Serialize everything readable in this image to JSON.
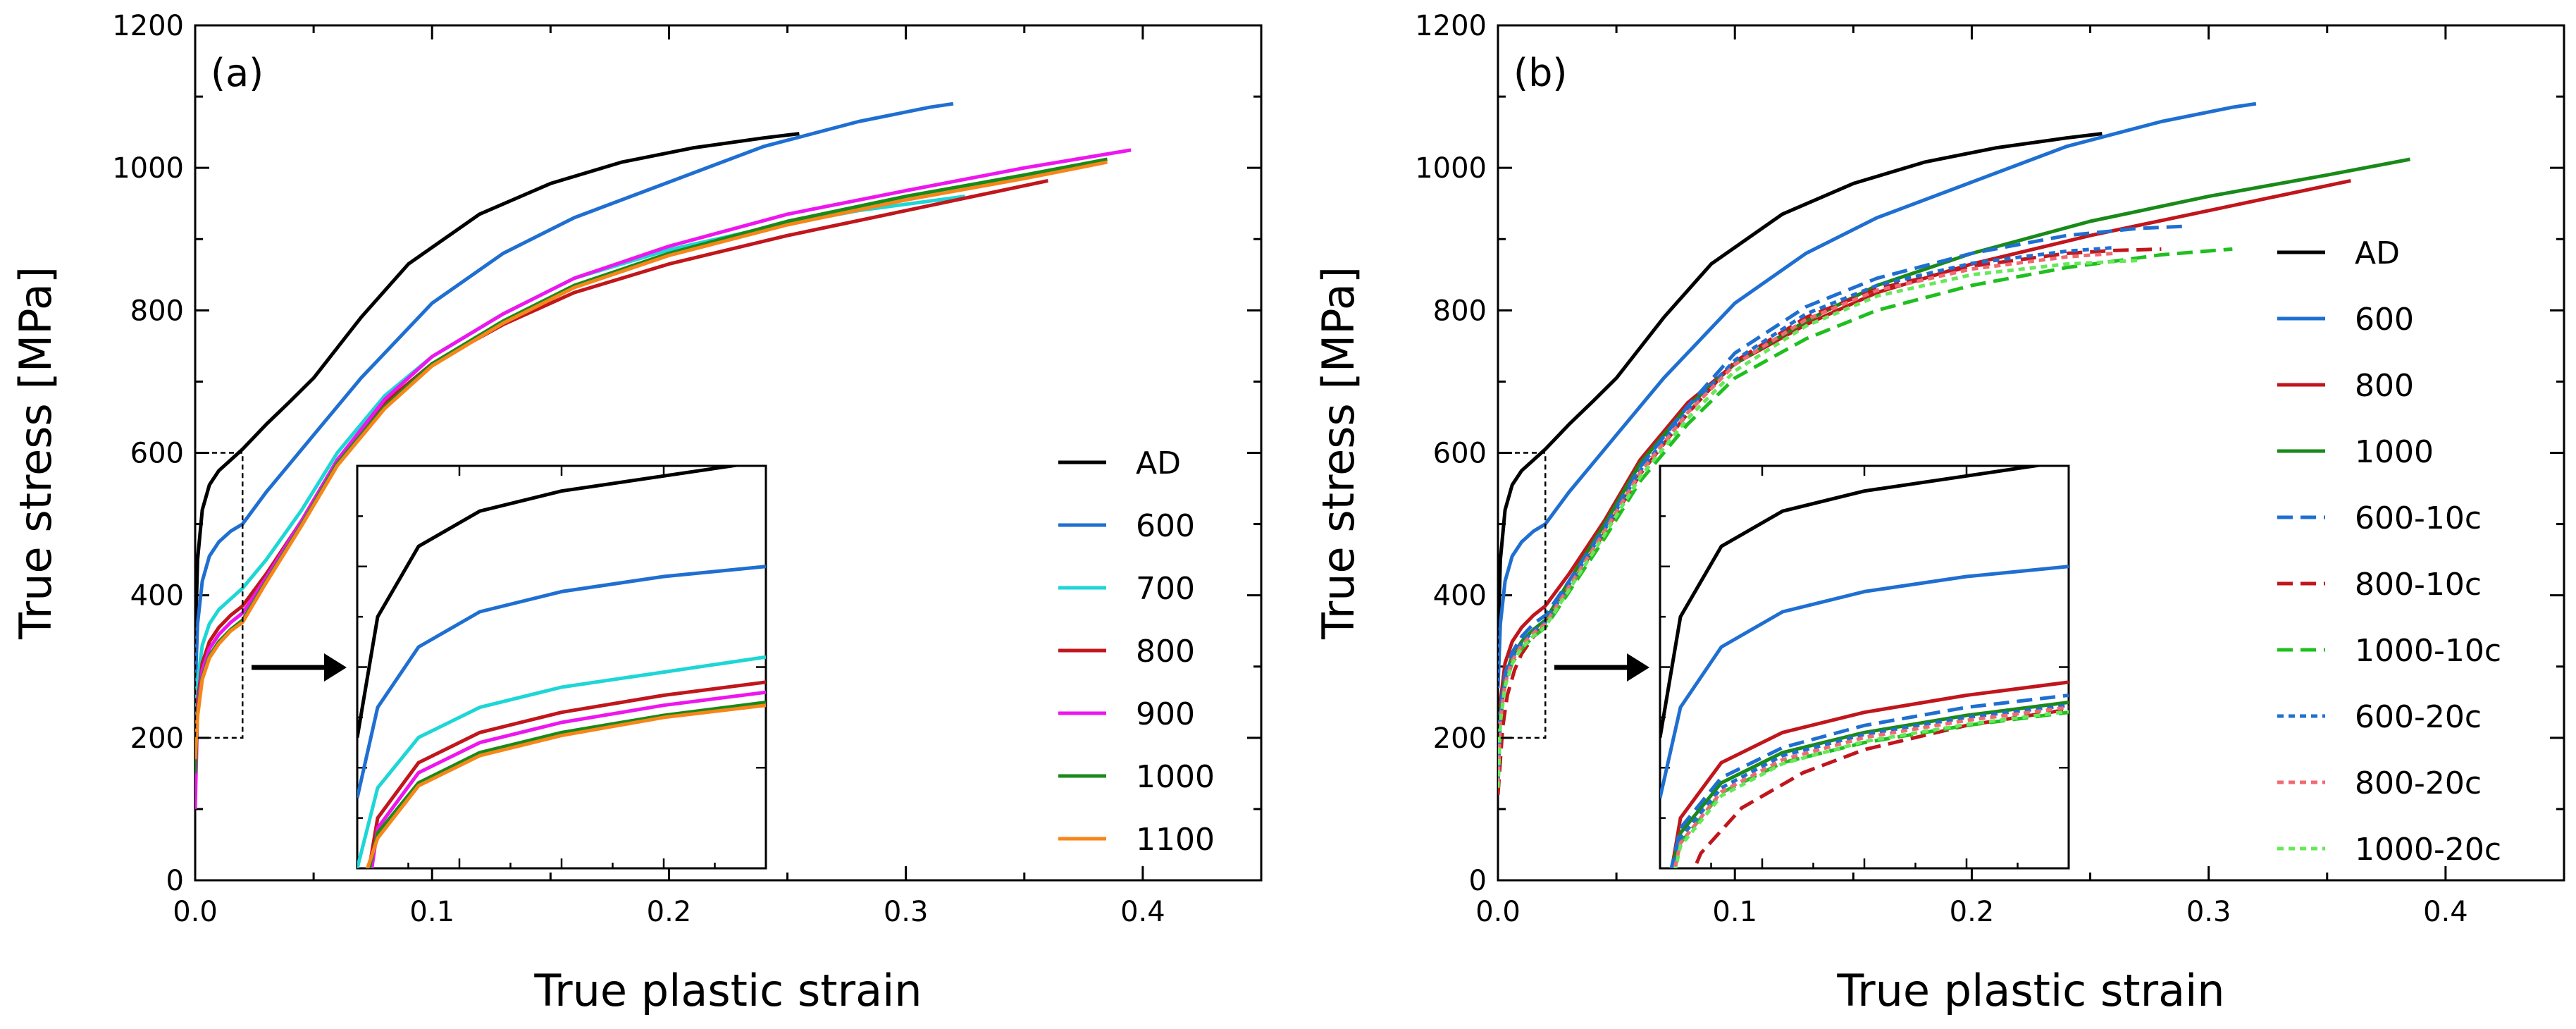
{
  "chart_data": [
    {
      "type": "line",
      "panel_label": "(a)",
      "xlabel": "True plastic strain",
      "ylabel": "True stress [MPa]",
      "xlim": [
        0,
        0.45
      ],
      "ylim": [
        0,
        1200
      ],
      "xticks": [
        "0.0",
        "0.1",
        "0.2",
        "0.3",
        "0.4"
      ],
      "yticks": [
        "0",
        "200",
        "400",
        "600",
        "800",
        "1000",
        "1200"
      ],
      "grid": false,
      "legend_position": "right",
      "inset": {
        "source_box": {
          "x": [
            0,
            0.02
          ],
          "y": [
            200,
            600
          ]
        },
        "xlim": [
          0,
          0.02
        ],
        "ylim": [
          200,
          600
        ],
        "arrow": "right"
      },
      "series": [
        {
          "name": "AD",
          "color": "#000000",
          "dash": "solid",
          "x": [
            0,
            0.001,
            0.003,
            0.006,
            0.01,
            0.015,
            0.02,
            0.03,
            0.04,
            0.05,
            0.07,
            0.09,
            0.12,
            0.15,
            0.18,
            0.21,
            0.24,
            0.255
          ],
          "y": [
            330,
            450,
            520,
            555,
            575,
            590,
            605,
            640,
            672,
            705,
            790,
            865,
            935,
            978,
            1008,
            1028,
            1042,
            1048
          ]
        },
        {
          "name": "600",
          "color": "#1f6fd1",
          "dash": "solid",
          "x": [
            0,
            0.001,
            0.003,
            0.006,
            0.01,
            0.015,
            0.02,
            0.03,
            0.04,
            0.05,
            0.07,
            0.1,
            0.13,
            0.16,
            0.2,
            0.24,
            0.28,
            0.31,
            0.32
          ],
          "y": [
            270,
            360,
            420,
            455,
            475,
            490,
            500,
            545,
            585,
            625,
            705,
            810,
            880,
            930,
            980,
            1030,
            1065,
            1085,
            1090
          ]
        },
        {
          "name": "700",
          "color": "#1ed6d6",
          "dash": "solid",
          "x": [
            0,
            0.001,
            0.003,
            0.006,
            0.01,
            0.015,
            0.02,
            0.03,
            0.045,
            0.06,
            0.08,
            0.1,
            0.13,
            0.16,
            0.2,
            0.24,
            0.28,
            0.325
          ],
          "y": [
            200,
            280,
            330,
            360,
            380,
            395,
            410,
            450,
            520,
            600,
            680,
            735,
            795,
            845,
            885,
            915,
            940,
            960
          ]
        },
        {
          "name": "800",
          "color": "#c0161c",
          "dash": "solid",
          "x": [
            0,
            0.001,
            0.003,
            0.006,
            0.01,
            0.015,
            0.02,
            0.03,
            0.045,
            0.06,
            0.08,
            0.1,
            0.13,
            0.16,
            0.2,
            0.25,
            0.3,
            0.36
          ],
          "y": [
            130,
            250,
            305,
            335,
            355,
            372,
            385,
            430,
            505,
            590,
            670,
            725,
            780,
            825,
            865,
            905,
            940,
            982
          ]
        },
        {
          "name": "900",
          "color": "#ee16ee",
          "dash": "solid",
          "x": [
            0,
            0.001,
            0.003,
            0.006,
            0.01,
            0.015,
            0.02,
            0.03,
            0.045,
            0.06,
            0.08,
            0.1,
            0.13,
            0.16,
            0.2,
            0.25,
            0.3,
            0.35,
            0.395
          ],
          "y": [
            100,
            240,
            295,
            325,
            345,
            362,
            375,
            425,
            505,
            590,
            675,
            735,
            795,
            845,
            890,
            935,
            968,
            1000,
            1025
          ]
        },
        {
          "name": "1000",
          "color": "#198a19",
          "dash": "solid",
          "x": [
            0,
            0.001,
            0.003,
            0.006,
            0.01,
            0.015,
            0.02,
            0.03,
            0.045,
            0.06,
            0.08,
            0.1,
            0.13,
            0.16,
            0.2,
            0.25,
            0.3,
            0.35,
            0.385
          ],
          "y": [
            150,
            235,
            285,
            315,
            335,
            352,
            365,
            420,
            500,
            585,
            665,
            725,
            785,
            835,
            880,
            925,
            960,
            990,
            1012
          ]
        },
        {
          "name": "1100",
          "color": "#f7861a",
          "dash": "solid",
          "x": [
            0,
            0.001,
            0.003,
            0.006,
            0.01,
            0.015,
            0.02,
            0.03,
            0.045,
            0.06,
            0.08,
            0.1,
            0.13,
            0.16,
            0.2,
            0.25,
            0.3,
            0.35,
            0.385
          ],
          "y": [
            170,
            230,
            282,
            312,
            332,
            350,
            362,
            418,
            498,
            582,
            662,
            722,
            782,
            832,
            877,
            920,
            955,
            985,
            1008
          ]
        }
      ]
    },
    {
      "type": "line",
      "panel_label": "(b)",
      "xlabel": "True plastic strain",
      "ylabel": "True stress [MPa]",
      "xlim": [
        0,
        0.45
      ],
      "ylim": [
        0,
        1200
      ],
      "xticks": [
        "0.0",
        "0.1",
        "0.2",
        "0.3",
        "0.4"
      ],
      "yticks": [
        "0",
        "200",
        "400",
        "600",
        "800",
        "1000",
        "1200"
      ],
      "grid": false,
      "legend_position": "right",
      "inset": {
        "source_box": {
          "x": [
            0,
            0.02
          ],
          "y": [
            200,
            600
          ]
        },
        "xlim": [
          0,
          0.02
        ],
        "ylim": [
          200,
          600
        ],
        "arrow": "right"
      },
      "series": [
        {
          "name": "AD",
          "color": "#000000",
          "dash": "solid",
          "x": [
            0,
            0.001,
            0.003,
            0.006,
            0.01,
            0.015,
            0.02,
            0.03,
            0.04,
            0.05,
            0.07,
            0.09,
            0.12,
            0.15,
            0.18,
            0.21,
            0.24,
            0.255
          ],
          "y": [
            330,
            450,
            520,
            555,
            575,
            590,
            605,
            640,
            672,
            705,
            790,
            865,
            935,
            978,
            1008,
            1028,
            1042,
            1048
          ]
        },
        {
          "name": "600",
          "color": "#1f6fd1",
          "dash": "solid",
          "x": [
            0,
            0.001,
            0.003,
            0.006,
            0.01,
            0.015,
            0.02,
            0.03,
            0.04,
            0.05,
            0.07,
            0.1,
            0.13,
            0.16,
            0.2,
            0.24,
            0.28,
            0.31,
            0.32
          ],
          "y": [
            270,
            360,
            420,
            455,
            475,
            490,
            500,
            545,
            585,
            625,
            705,
            810,
            880,
            930,
            980,
            1030,
            1065,
            1085,
            1090
          ]
        },
        {
          "name": "800",
          "color": "#c0161c",
          "dash": "solid",
          "x": [
            0,
            0.001,
            0.003,
            0.006,
            0.01,
            0.015,
            0.02,
            0.03,
            0.045,
            0.06,
            0.08,
            0.1,
            0.13,
            0.16,
            0.2,
            0.25,
            0.3,
            0.36
          ],
          "y": [
            130,
            250,
            305,
            335,
            355,
            372,
            385,
            430,
            505,
            590,
            670,
            725,
            780,
            825,
            865,
            905,
            940,
            982
          ]
        },
        {
          "name": "1000",
          "color": "#198a19",
          "dash": "solid",
          "x": [
            0,
            0.001,
            0.003,
            0.006,
            0.01,
            0.015,
            0.02,
            0.03,
            0.045,
            0.06,
            0.08,
            0.1,
            0.13,
            0.16,
            0.2,
            0.25,
            0.3,
            0.35,
            0.385
          ],
          "y": [
            150,
            235,
            285,
            315,
            335,
            352,
            365,
            420,
            500,
            585,
            665,
            725,
            785,
            835,
            880,
            925,
            960,
            990,
            1012
          ]
        },
        {
          "name": "600-10c",
          "color": "#1f6fd1",
          "dash": "long",
          "x": [
            0,
            0.001,
            0.003,
            0.006,
            0.01,
            0.015,
            0.02,
            0.03,
            0.045,
            0.06,
            0.08,
            0.1,
            0.13,
            0.16,
            0.2,
            0.24,
            0.27,
            0.29
          ],
          "y": [
            150,
            240,
            290,
            320,
            342,
            360,
            372,
            420,
            495,
            580,
            665,
            740,
            805,
            845,
            880,
            905,
            915,
            918
          ]
        },
        {
          "name": "800-10c",
          "color": "#c0161c",
          "dash": "long",
          "x": [
            0,
            0.002,
            0.004,
            0.007,
            0.01,
            0.015,
            0.02,
            0.03,
            0.045,
            0.06,
            0.08,
            0.1,
            0.13,
            0.16,
            0.2,
            0.24,
            0.26,
            0.28
          ],
          "y": [
            120,
            215,
            260,
            295,
            318,
            342,
            358,
            410,
            488,
            570,
            655,
            728,
            790,
            830,
            862,
            880,
            884,
            886
          ]
        },
        {
          "name": "1000-10c",
          "color": "#1fbf1f",
          "dash": "long",
          "x": [
            0,
            0.001,
            0.003,
            0.006,
            0.01,
            0.015,
            0.02,
            0.03,
            0.045,
            0.06,
            0.08,
            0.1,
            0.13,
            0.16,
            0.2,
            0.24,
            0.28,
            0.31
          ],
          "y": [
            130,
            225,
            275,
            305,
            325,
            342,
            355,
            405,
            480,
            560,
            640,
            705,
            760,
            800,
            835,
            860,
            878,
            886
          ]
        },
        {
          "name": "600-20c",
          "color": "#1f6fd1",
          "dash": "short",
          "x": [
            0,
            0.001,
            0.003,
            0.006,
            0.01,
            0.015,
            0.02,
            0.03,
            0.045,
            0.06,
            0.08,
            0.1,
            0.13,
            0.16,
            0.2,
            0.24,
            0.26
          ],
          "y": [
            140,
            230,
            280,
            312,
            333,
            350,
            362,
            415,
            492,
            575,
            660,
            730,
            795,
            835,
            866,
            883,
            888
          ]
        },
        {
          "name": "800-20c",
          "color": "#f06a72",
          "dash": "short",
          "x": [
            0,
            0.001,
            0.003,
            0.006,
            0.01,
            0.015,
            0.02,
            0.03,
            0.045,
            0.06,
            0.08,
            0.1,
            0.13,
            0.16,
            0.2,
            0.24,
            0.26
          ],
          "y": [
            135,
            225,
            276,
            308,
            330,
            347,
            360,
            412,
            490,
            572,
            656,
            724,
            787,
            828,
            858,
            875,
            880
          ]
        },
        {
          "name": "1000-20c",
          "color": "#66e85a",
          "dash": "short",
          "x": [
            0,
            0.001,
            0.003,
            0.006,
            0.01,
            0.015,
            0.02,
            0.03,
            0.045,
            0.06,
            0.08,
            0.1,
            0.13,
            0.16,
            0.2,
            0.24,
            0.27
          ],
          "y": [
            130,
            222,
            272,
            304,
            326,
            343,
            356,
            408,
            485,
            566,
            648,
            715,
            778,
            820,
            850,
            865,
            870
          ]
        }
      ]
    }
  ]
}
